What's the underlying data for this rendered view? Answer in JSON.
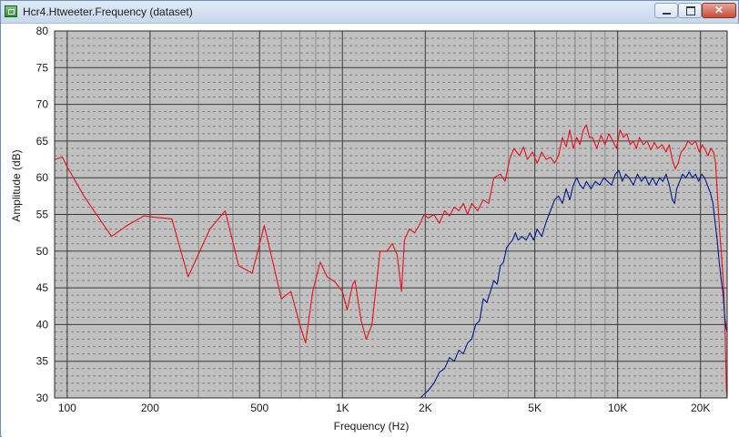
{
  "window": {
    "title": "Hcr4.Htweeter.Frequency (dataset)",
    "icon": "dataset-window-icon",
    "controls": {
      "minimize": "minimize-icon",
      "maximize": "maximize-icon",
      "close": "close-icon",
      "close_glyph": "✕"
    }
  },
  "chart_data": {
    "type": "line",
    "xlabel": "Frequency (Hz)",
    "ylabel": "Amplitude (dB)",
    "xscale": "log",
    "xlim": [
      90,
      25000
    ],
    "ylim": [
      30,
      80
    ],
    "grid": true,
    "x_ticks": [
      {
        "value": 100,
        "label": "100"
      },
      {
        "value": 200,
        "label": "200"
      },
      {
        "value": 500,
        "label": "500"
      },
      {
        "value": 1000,
        "label": "1K"
      },
      {
        "value": 2000,
        "label": "2K"
      },
      {
        "value": 5000,
        "label": "5K"
      },
      {
        "value": 10000,
        "label": "10K"
      },
      {
        "value": 20000,
        "label": "20K"
      }
    ],
    "y_ticks": [
      30,
      35,
      40,
      45,
      50,
      55,
      60,
      65,
      70,
      75,
      80
    ],
    "plot_background": "#c0c0c0",
    "series": [
      {
        "color": "#e8101a",
        "points": [
          [
            90,
            62.5
          ],
          [
            96,
            62.8
          ],
          [
            100,
            61.5
          ],
          [
            115,
            57.5
          ],
          [
            145,
            52.0
          ],
          [
            165,
            53.5
          ],
          [
            190,
            54.8
          ],
          [
            210,
            54.6
          ],
          [
            240,
            54.4
          ],
          [
            275,
            46.5
          ],
          [
            330,
            53.0
          ],
          [
            375,
            55.5
          ],
          [
            420,
            48.0
          ],
          [
            470,
            47.0
          ],
          [
            520,
            53.5
          ],
          [
            600,
            43.5
          ],
          [
            650,
            44.5
          ],
          [
            700,
            40.0
          ],
          [
            735,
            37.5
          ],
          [
            780,
            44.5
          ],
          [
            830,
            48.5
          ],
          [
            880,
            46.5
          ],
          [
            940,
            45.8
          ],
          [
            1000,
            44.5
          ],
          [
            1040,
            42.0
          ],
          [
            1090,
            45.5
          ],
          [
            1110,
            46.0
          ],
          [
            1170,
            40.5
          ],
          [
            1220,
            38.0
          ],
          [
            1280,
            40.0
          ],
          [
            1370,
            50.0
          ],
          [
            1450,
            50.0
          ],
          [
            1520,
            51.0
          ],
          [
            1580,
            49.5
          ],
          [
            1640,
            44.5
          ],
          [
            1680,
            51.5
          ],
          [
            1750,
            53.0
          ],
          [
            1830,
            52.5
          ],
          [
            1900,
            53.5
          ],
          [
            1980,
            55.0
          ],
          [
            2050,
            54.5
          ],
          [
            2150,
            55.0
          ],
          [
            2250,
            53.8
          ],
          [
            2350,
            55.5
          ],
          [
            2450,
            54.8
          ],
          [
            2550,
            56.0
          ],
          [
            2650,
            55.5
          ],
          [
            2750,
            56.5
          ],
          [
            2850,
            55.0
          ],
          [
            2950,
            56.5
          ],
          [
            3100,
            55.5
          ],
          [
            3250,
            57.0
          ],
          [
            3400,
            56.5
          ],
          [
            3550,
            60.0
          ],
          [
            3750,
            60.5
          ],
          [
            3900,
            59.5
          ],
          [
            4050,
            62.5
          ],
          [
            4200,
            64.0
          ],
          [
            4400,
            63.0
          ],
          [
            4550,
            64.2
          ],
          [
            4700,
            62.5
          ],
          [
            4900,
            63.5
          ],
          [
            5100,
            62.0
          ],
          [
            5300,
            63.5
          ],
          [
            5500,
            62.5
          ],
          [
            5700,
            62.8
          ],
          [
            5900,
            62.0
          ],
          [
            6100,
            63.0
          ],
          [
            6300,
            65.5
          ],
          [
            6500,
            64.2
          ],
          [
            6700,
            66.5
          ],
          [
            6900,
            64.0
          ],
          [
            7100,
            65.5
          ],
          [
            7300,
            64.5
          ],
          [
            7500,
            66.5
          ],
          [
            7700,
            67.2
          ],
          [
            7900,
            65.5
          ],
          [
            8100,
            65.5
          ],
          [
            8400,
            64.0
          ],
          [
            8700,
            65.8
          ],
          [
            9000,
            64.5
          ],
          [
            9300,
            66.0
          ],
          [
            9600,
            65.0
          ],
          [
            9900,
            64.0
          ],
          [
            10200,
            66.5
          ],
          [
            10500,
            65.5
          ],
          [
            10800,
            66.0
          ],
          [
            11100,
            64.5
          ],
          [
            11400,
            65.0
          ],
          [
            11700,
            64.0
          ],
          [
            12000,
            65.5
          ],
          [
            12400,
            64.5
          ],
          [
            12800,
            65.0
          ],
          [
            13200,
            63.8
          ],
          [
            13600,
            64.8
          ],
          [
            14000,
            64.0
          ],
          [
            14500,
            64.5
          ],
          [
            15000,
            63.5
          ],
          [
            15400,
            64.5
          ],
          [
            15800,
            62.5
          ],
          [
            16200,
            61.2
          ],
          [
            16600,
            62.0
          ],
          [
            17000,
            63.5
          ],
          [
            17500,
            64.0
          ],
          [
            18000,
            65.0
          ],
          [
            18600,
            64.5
          ],
          [
            19200,
            65.0
          ],
          [
            19800,
            63.5
          ],
          [
            20300,
            64.5
          ],
          [
            20800,
            63.8
          ],
          [
            21300,
            63.0
          ],
          [
            21800,
            64.0
          ],
          [
            22300,
            63.5
          ],
          [
            22700,
            62.0
          ],
          [
            23100,
            57.0
          ],
          [
            23500,
            52.5
          ],
          [
            23900,
            49.0
          ],
          [
            24300,
            44.5
          ],
          [
            24600,
            38.0
          ],
          [
            24850,
            31.0
          ],
          [
            25000,
            30.0
          ]
        ]
      },
      {
        "color": "#001a8c",
        "points": [
          [
            1920,
            30.0
          ],
          [
            1980,
            30.5
          ],
          [
            2050,
            31.0
          ],
          [
            2150,
            32.0
          ],
          [
            2250,
            33.5
          ],
          [
            2350,
            34.0
          ],
          [
            2450,
            35.5
          ],
          [
            2550,
            35.0
          ],
          [
            2650,
            36.5
          ],
          [
            2750,
            36.0
          ],
          [
            2850,
            37.5
          ],
          [
            2950,
            38.0
          ],
          [
            3050,
            40.0
          ],
          [
            3150,
            40.5
          ],
          [
            3250,
            43.5
          ],
          [
            3350,
            43.0
          ],
          [
            3450,
            44.5
          ],
          [
            3550,
            46.0
          ],
          [
            3650,
            45.5
          ],
          [
            3750,
            48.0
          ],
          [
            3850,
            48.5
          ],
          [
            3950,
            50.5
          ],
          [
            4050,
            51.0
          ],
          [
            4150,
            51.5
          ],
          [
            4250,
            52.5
          ],
          [
            4350,
            51.5
          ],
          [
            4500,
            52.0
          ],
          [
            4650,
            51.5
          ],
          [
            4800,
            52.5
          ],
          [
            4950,
            51.5
          ],
          [
            5100,
            53.0
          ],
          [
            5300,
            52.0
          ],
          [
            5500,
            54.0
          ],
          [
            5700,
            55.5
          ],
          [
            5900,
            57.0
          ],
          [
            6100,
            57.5
          ],
          [
            6300,
            56.5
          ],
          [
            6500,
            58.5
          ],
          [
            6700,
            57.0
          ],
          [
            6900,
            59.0
          ],
          [
            7100,
            60.0
          ],
          [
            7300,
            59.0
          ],
          [
            7500,
            58.5
          ],
          [
            7700,
            59.5
          ],
          [
            8000,
            58.5
          ],
          [
            8300,
            59.5
          ],
          [
            8600,
            59.0
          ],
          [
            8900,
            60.0
          ],
          [
            9200,
            59.5
          ],
          [
            9500,
            59.0
          ],
          [
            9800,
            60.5
          ],
          [
            10100,
            61.0
          ],
          [
            10400,
            59.5
          ],
          [
            10700,
            60.5
          ],
          [
            11000,
            60.0
          ],
          [
            11400,
            59.0
          ],
          [
            11800,
            60.5
          ],
          [
            12200,
            59.5
          ],
          [
            12600,
            60.2
          ],
          [
            13000,
            59.0
          ],
          [
            13400,
            60.0
          ],
          [
            13800,
            59.0
          ],
          [
            14200,
            60.0
          ],
          [
            14600,
            59.5
          ],
          [
            15000,
            60.5
          ],
          [
            15400,
            59.0
          ],
          [
            15800,
            57.0
          ],
          [
            16100,
            56.5
          ],
          [
            16400,
            58.5
          ],
          [
            16800,
            59.5
          ],
          [
            17200,
            60.5
          ],
          [
            17700,
            60.0
          ],
          [
            18200,
            60.8
          ],
          [
            18700,
            60.0
          ],
          [
            19200,
            60.5
          ],
          [
            19700,
            59.5
          ],
          [
            20200,
            60.5
          ],
          [
            20700,
            60.0
          ],
          [
            21200,
            59.0
          ],
          [
            21700,
            58.0
          ],
          [
            22200,
            56.5
          ],
          [
            22600,
            54.0
          ],
          [
            23000,
            51.5
          ],
          [
            23400,
            48.5
          ],
          [
            23800,
            46.0
          ],
          [
            24200,
            44.0
          ],
          [
            24500,
            41.0
          ],
          [
            24800,
            39.5
          ],
          [
            25000,
            39.0
          ]
        ]
      }
    ]
  }
}
